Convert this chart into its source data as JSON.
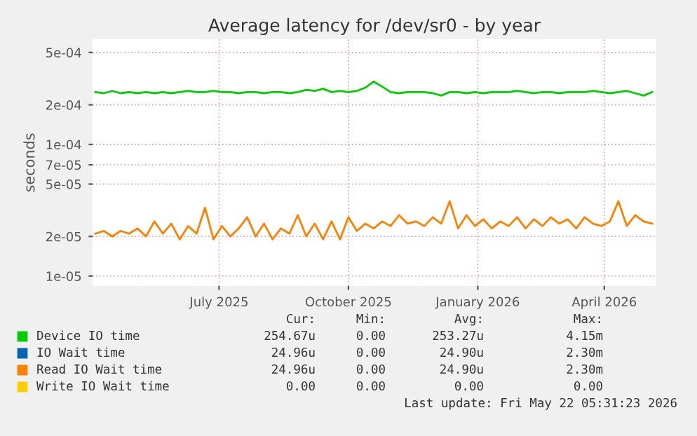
{
  "chart_data": {
    "type": "line",
    "title": "Average latency for /dev/sr0 - by year",
    "ylabel": "seconds",
    "x": [
      "2025-04-04",
      "2025-04-10",
      "2025-04-16",
      "2025-04-22",
      "2025-04-28",
      "2025-05-04",
      "2025-05-10",
      "2025-05-16",
      "2025-05-22",
      "2025-05-28",
      "2025-06-03",
      "2025-06-09",
      "2025-06-15",
      "2025-06-21",
      "2025-06-27",
      "2025-07-03",
      "2025-07-09",
      "2025-07-15",
      "2025-07-21",
      "2025-07-27",
      "2025-08-02",
      "2025-08-08",
      "2025-08-14",
      "2025-08-20",
      "2025-08-26",
      "2025-09-01",
      "2025-09-07",
      "2025-09-13",
      "2025-09-19",
      "2025-09-25",
      "2025-10-01",
      "2025-10-07",
      "2025-10-13",
      "2025-10-19",
      "2025-10-25",
      "2025-10-31",
      "2025-11-06",
      "2025-11-12",
      "2025-11-18",
      "2025-11-24",
      "2025-11-30",
      "2025-12-06",
      "2025-12-12",
      "2025-12-18",
      "2025-12-24",
      "2025-12-30",
      "2026-01-05",
      "2026-01-11",
      "2026-01-17",
      "2026-01-23",
      "2026-01-29",
      "2026-02-04",
      "2026-02-10",
      "2026-02-16",
      "2026-02-22",
      "2026-02-28",
      "2026-03-06",
      "2026-03-12",
      "2026-03-18",
      "2026-03-24",
      "2026-03-30",
      "2026-04-05",
      "2026-04-11",
      "2026-04-17",
      "2026-04-23",
      "2026-04-29",
      "2026-05-05"
    ],
    "series": [
      {
        "name": "Device IO time",
        "color": "#00cc00",
        "values": [
          0.00025,
          0.000245,
          0.000255,
          0.000245,
          0.00025,
          0.000245,
          0.00025,
          0.000245,
          0.00025,
          0.000245,
          0.00025,
          0.000255,
          0.00025,
          0.00025,
          0.000255,
          0.00025,
          0.00025,
          0.000245,
          0.00025,
          0.00025,
          0.000245,
          0.00025,
          0.00025,
          0.000245,
          0.00025,
          0.00026,
          0.000255,
          0.000265,
          0.00025,
          0.000255,
          0.00025,
          0.000255,
          0.00027,
          0.0003,
          0.000275,
          0.00025,
          0.000245,
          0.00025,
          0.00025,
          0.00025,
          0.000245,
          0.000235,
          0.00025,
          0.00025,
          0.000245,
          0.00025,
          0.000245,
          0.00025,
          0.00025,
          0.00025,
          0.000255,
          0.00025,
          0.000245,
          0.00025,
          0.00025,
          0.000245,
          0.00025,
          0.00025,
          0.00025,
          0.000255,
          0.00025,
          0.000245,
          0.00025,
          0.000255,
          0.000245,
          0.000235,
          0.00025
        ]
      },
      {
        "name": "IO Wait time",
        "color": "#0066b3",
        "values": [
          null,
          null,
          null,
          null,
          null,
          null,
          null,
          null,
          null,
          null,
          null,
          null,
          null,
          null,
          null,
          null,
          null,
          null,
          null,
          null,
          null,
          null,
          null,
          null,
          null,
          null,
          null,
          null,
          null,
          null,
          null,
          null,
          null,
          null,
          null,
          null,
          null,
          null,
          null,
          null,
          null,
          null,
          null,
          null,
          null,
          null,
          null,
          null,
          null,
          null,
          null,
          null,
          null,
          null,
          null,
          null,
          null,
          null,
          null,
          null,
          null,
          null,
          null,
          null,
          null,
          null,
          null
        ]
      },
      {
        "name": "Read IO Wait time",
        "color": "#ff8000",
        "values": [
          2.1e-05,
          2.2e-05,
          2e-05,
          2.2e-05,
          2.1e-05,
          2.3e-05,
          2e-05,
          2.6e-05,
          2.1e-05,
          2.5e-05,
          1.9e-05,
          2.4e-05,
          2.1e-05,
          3.3e-05,
          1.9e-05,
          2.4e-05,
          2e-05,
          2.3e-05,
          2.8e-05,
          2e-05,
          2.5e-05,
          1.9e-05,
          2.3e-05,
          2.1e-05,
          2.9e-05,
          2e-05,
          2.5e-05,
          1.9e-05,
          2.6e-05,
          1.9e-05,
          2.8e-05,
          2.2e-05,
          2.5e-05,
          2.3e-05,
          2.6e-05,
          2.4e-05,
          2.9e-05,
          2.5e-05,
          2.6e-05,
          2.4e-05,
          2.8e-05,
          2.5e-05,
          3.7e-05,
          2.3e-05,
          2.9e-05,
          2.4e-05,
          2.7e-05,
          2.3e-05,
          2.6e-05,
          2.4e-05,
          2.8e-05,
          2.3e-05,
          2.7e-05,
          2.4e-05,
          2.8e-05,
          2.5e-05,
          2.7e-05,
          2.3e-05,
          2.8e-05,
          2.5e-05,
          2.4e-05,
          2.6e-05,
          3.7e-05,
          2.4e-05,
          2.9e-05,
          2.6e-05,
          2.5e-05
        ]
      },
      {
        "name": "Write IO Wait time",
        "color": "#ffcc00",
        "values": [
          null,
          null,
          null,
          null,
          null,
          null,
          null,
          null,
          null,
          null,
          null,
          null,
          null,
          null,
          null,
          null,
          null,
          null,
          null,
          null,
          null,
          null,
          null,
          null,
          null,
          null,
          null,
          null,
          null,
          null,
          null,
          null,
          null,
          null,
          null,
          null,
          null,
          null,
          null,
          null,
          null,
          null,
          null,
          null,
          null,
          null,
          null,
          null,
          null,
          null,
          null,
          null,
          null,
          null,
          null,
          null,
          null,
          null,
          null,
          null,
          null,
          null,
          null,
          null,
          null,
          null,
          null
        ]
      }
    ],
    "log": true,
    "ylim": [
      8.4e-06,
      0.00063
    ],
    "yticks": [
      {
        "value": 1e-05,
        "label": "1e-05"
      },
      {
        "value": 2e-05,
        "label": "2e-05"
      },
      {
        "value": 5e-05,
        "label": "5e-05"
      },
      {
        "value": 7e-05,
        "label": "7e-05"
      },
      {
        "value": 0.0001,
        "label": "1e-04"
      },
      {
        "value": 0.0002,
        "label": "2e-04"
      },
      {
        "value": 0.0005,
        "label": "5e-04"
      }
    ],
    "xlim": [
      "2025-04-02",
      "2026-05-08"
    ],
    "xticks": [
      {
        "value": "2025-07-01",
        "label": "July 2025"
      },
      {
        "value": "2025-10-01",
        "label": "October 2025"
      },
      {
        "value": "2026-01-01",
        "label": "January 2026"
      },
      {
        "value": "2026-04-01",
        "label": "April 2026"
      }
    ],
    "grid": true,
    "legend": "bottom",
    "annotations": [
      "Cur:",
      "Min:",
      "Avg:",
      "Max:",
      "254.67u",
      "0.00",
      "253.27u",
      "4.15m",
      "24.96u",
      "0.00",
      "24.90u",
      "2.30m",
      "24.96u",
      "0.00",
      "24.90u",
      "2.30m",
      "0.00",
      "0.00",
      "0.00",
      "0.00",
      "Last update: Fri May 22 05:31:23 2026"
    ]
  }
}
